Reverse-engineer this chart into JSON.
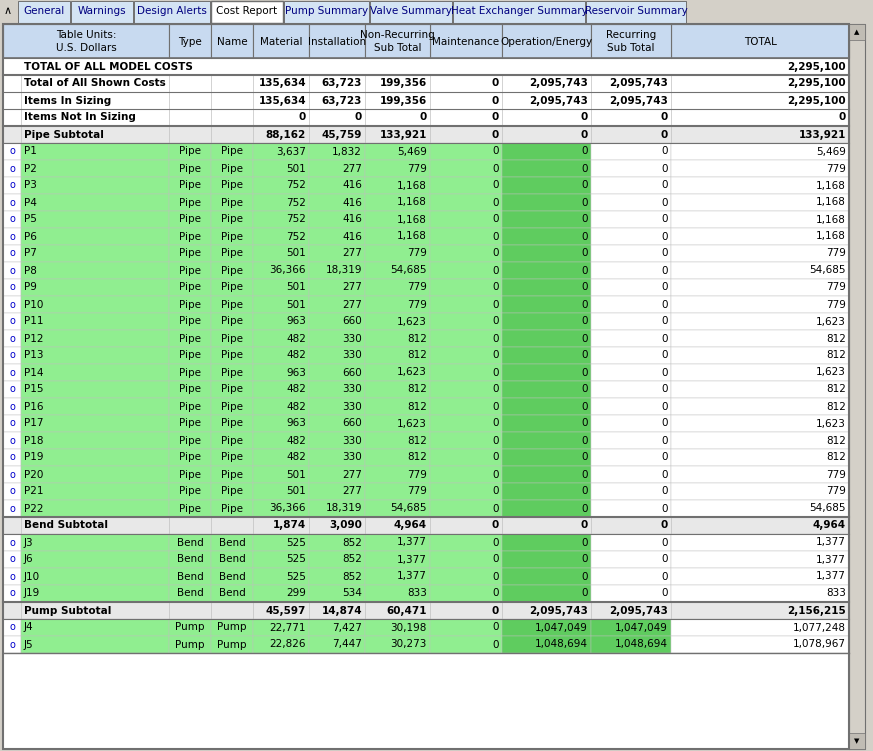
{
  "tabs": [
    "General",
    "Warnings",
    "Design Alerts",
    "Cost Report",
    "Pump Summary",
    "Valve Summary",
    "Heat Exchanger Summary",
    "Reservoir Summary"
  ],
  "active_tab": "Cost Report",
  "tab_widths": [
    52,
    62,
    76,
    72,
    85,
    82,
    132,
    100
  ],
  "pipe_rows": [
    {
      "name": "P1",
      "type": "Pipe",
      "mat": "3,637",
      "inst": "1,832",
      "sub": "5,469",
      "maint": "0",
      "openg": "0",
      "recur": "0",
      "total": "5,469"
    },
    {
      "name": "P2",
      "type": "Pipe",
      "mat": "501",
      "inst": "277",
      "sub": "779",
      "maint": "0",
      "openg": "0",
      "recur": "0",
      "total": "779"
    },
    {
      "name": "P3",
      "type": "Pipe",
      "mat": "752",
      "inst": "416",
      "sub": "1,168",
      "maint": "0",
      "openg": "0",
      "recur": "0",
      "total": "1,168"
    },
    {
      "name": "P4",
      "type": "Pipe",
      "mat": "752",
      "inst": "416",
      "sub": "1,168",
      "maint": "0",
      "openg": "0",
      "recur": "0",
      "total": "1,168"
    },
    {
      "name": "P5",
      "type": "Pipe",
      "mat": "752",
      "inst": "416",
      "sub": "1,168",
      "maint": "0",
      "openg": "0",
      "recur": "0",
      "total": "1,168"
    },
    {
      "name": "P6",
      "type": "Pipe",
      "mat": "752",
      "inst": "416",
      "sub": "1,168",
      "maint": "0",
      "openg": "0",
      "recur": "0",
      "total": "1,168"
    },
    {
      "name": "P7",
      "type": "Pipe",
      "mat": "501",
      "inst": "277",
      "sub": "779",
      "maint": "0",
      "openg": "0",
      "recur": "0",
      "total": "779"
    },
    {
      "name": "P8",
      "type": "Pipe",
      "mat": "36,366",
      "inst": "18,319",
      "sub": "54,685",
      "maint": "0",
      "openg": "0",
      "recur": "0",
      "total": "54,685"
    },
    {
      "name": "P9",
      "type": "Pipe",
      "mat": "501",
      "inst": "277",
      "sub": "779",
      "maint": "0",
      "openg": "0",
      "recur": "0",
      "total": "779"
    },
    {
      "name": "P10",
      "type": "Pipe",
      "mat": "501",
      "inst": "277",
      "sub": "779",
      "maint": "0",
      "openg": "0",
      "recur": "0",
      "total": "779"
    },
    {
      "name": "P11",
      "type": "Pipe",
      "mat": "963",
      "inst": "660",
      "sub": "1,623",
      "maint": "0",
      "openg": "0",
      "recur": "0",
      "total": "1,623"
    },
    {
      "name": "P12",
      "type": "Pipe",
      "mat": "482",
      "inst": "330",
      "sub": "812",
      "maint": "0",
      "openg": "0",
      "recur": "0",
      "total": "812"
    },
    {
      "name": "P13",
      "type": "Pipe",
      "mat": "482",
      "inst": "330",
      "sub": "812",
      "maint": "0",
      "openg": "0",
      "recur": "0",
      "total": "812"
    },
    {
      "name": "P14",
      "type": "Pipe",
      "mat": "963",
      "inst": "660",
      "sub": "1,623",
      "maint": "0",
      "openg": "0",
      "recur": "0",
      "total": "1,623"
    },
    {
      "name": "P15",
      "type": "Pipe",
      "mat": "482",
      "inst": "330",
      "sub": "812",
      "maint": "0",
      "openg": "0",
      "recur": "0",
      "total": "812"
    },
    {
      "name": "P16",
      "type": "Pipe",
      "mat": "482",
      "inst": "330",
      "sub": "812",
      "maint": "0",
      "openg": "0",
      "recur": "0",
      "total": "812"
    },
    {
      "name": "P17",
      "type": "Pipe",
      "mat": "963",
      "inst": "660",
      "sub": "1,623",
      "maint": "0",
      "openg": "0",
      "recur": "0",
      "total": "1,623"
    },
    {
      "name": "P18",
      "type": "Pipe",
      "mat": "482",
      "inst": "330",
      "sub": "812",
      "maint": "0",
      "openg": "0",
      "recur": "0",
      "total": "812"
    },
    {
      "name": "P19",
      "type": "Pipe",
      "mat": "482",
      "inst": "330",
      "sub": "812",
      "maint": "0",
      "openg": "0",
      "recur": "0",
      "total": "812"
    },
    {
      "name": "P20",
      "type": "Pipe",
      "mat": "501",
      "inst": "277",
      "sub": "779",
      "maint": "0",
      "openg": "0",
      "recur": "0",
      "total": "779"
    },
    {
      "name": "P21",
      "type": "Pipe",
      "mat": "501",
      "inst": "277",
      "sub": "779",
      "maint": "0",
      "openg": "0",
      "recur": "0",
      "total": "779"
    },
    {
      "name": "P22",
      "type": "Pipe",
      "mat": "36,366",
      "inst": "18,319",
      "sub": "54,685",
      "maint": "0",
      "openg": "0",
      "recur": "0",
      "total": "54,685"
    }
  ],
  "bend_rows": [
    {
      "name": "J3",
      "type": "Bend",
      "mat": "525",
      "inst": "852",
      "sub": "1,377",
      "maint": "0",
      "openg": "0",
      "recur": "0",
      "total": "1,377"
    },
    {
      "name": "J6",
      "type": "Bend",
      "mat": "525",
      "inst": "852",
      "sub": "1,377",
      "maint": "0",
      "openg": "0",
      "recur": "0",
      "total": "1,377"
    },
    {
      "name": "J10",
      "type": "Bend",
      "mat": "525",
      "inst": "852",
      "sub": "1,377",
      "maint": "0",
      "openg": "0",
      "recur": "0",
      "total": "1,377"
    },
    {
      "name": "J19",
      "type": "Bend",
      "mat": "299",
      "inst": "534",
      "sub": "833",
      "maint": "0",
      "openg": "0",
      "recur": "0",
      "total": "833"
    }
  ],
  "pump_rows": [
    {
      "name": "J4",
      "type": "Pump",
      "mat": "22,771",
      "inst": "7,427",
      "sub": "30,198",
      "maint": "0",
      "openg": "1,047,049",
      "recur": "1,047,049",
      "total": "1,077,248"
    },
    {
      "name": "J5",
      "type": "Pump",
      "mat": "22,826",
      "inst": "7,447",
      "sub": "30,273",
      "maint": "0",
      "openg": "1,048,694",
      "recur": "1,048,694",
      "total": "1,078,967"
    }
  ],
  "colors": {
    "bg_window": "#d4d0c8",
    "bg_content": "#ffffff",
    "header_bg": "#c8daf0",
    "tab_active": "#ffffff",
    "tab_inactive": "#d4e4f4",
    "tab_text_inactive": "#000080",
    "tab_text_active": "#000000",
    "row_white": "#ffffff",
    "row_green_light": "#90ee90",
    "row_green_dark": "#5fcc5f",
    "row_subtotal": "#e8e8e8",
    "border_dark": "#707070",
    "border_light": "#c0c0c0",
    "icon_blue": "#0000cc",
    "text_black": "#000000",
    "text_bold_subtotal": "#000000",
    "scrollbar_bg": "#d4d0c8",
    "scrollbar_btn": "#c0bcb4"
  }
}
